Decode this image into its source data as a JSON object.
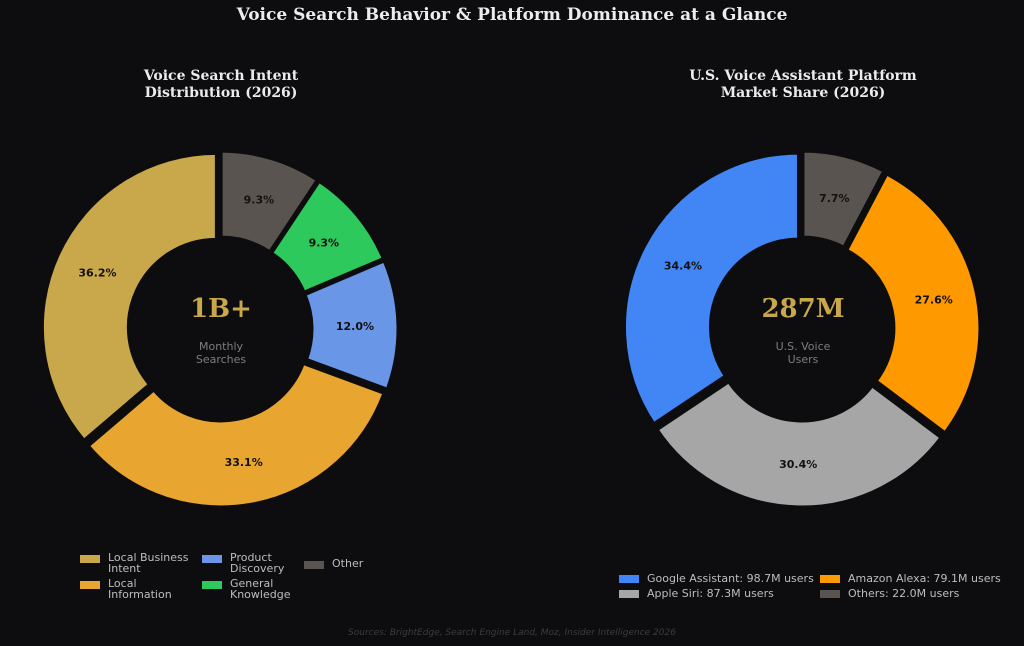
{
  "title": "Voice Search Behavior & Platform Dominance at a Glance",
  "source": "Sources: BrightEdge, Search Engine Land, Moz, Insider Intelligence 2026",
  "chart_data": [
    {
      "type": "pie",
      "title": "Voice Search Intent\nDistribution (2026)",
      "center": {
        "value": "1B+",
        "label": "Monthly\nSearches"
      },
      "series": [
        {
          "name": "Local Business\nIntent",
          "value": 36.2,
          "label": "36.2%",
          "color": "#c9a84c"
        },
        {
          "name": "Local\nInformation",
          "value": 33.1,
          "label": "33.1%",
          "color": "#e8a530"
        },
        {
          "name": "Product\nDiscovery",
          "value": 12.0,
          "label": "12.0%",
          "color": "#6a96e8"
        },
        {
          "name": "General\nKnowledge",
          "value": 9.3,
          "label": "9.3%",
          "color": "#2ec95c"
        },
        {
          "name": "Other",
          "value": 9.3,
          "label": "9.3%",
          "color": "#5a5450"
        }
      ]
    },
    {
      "type": "pie",
      "title": "U.S. Voice Assistant Platform\nMarket Share (2026)",
      "center": {
        "value": "287M",
        "label": "U.S. Voice\nUsers"
      },
      "series": [
        {
          "name": "Google Assistant: 98.7M users",
          "value": 34.4,
          "label": "34.4%",
          "color": "#4286f5"
        },
        {
          "name": "Apple Siri: 87.3M users",
          "value": 30.4,
          "label": "30.4%",
          "color": "#a6a6a6"
        },
        {
          "name": "Amazon Alexa: 79.1M users",
          "value": 27.6,
          "label": "27.6%",
          "color": "#ff9900"
        },
        {
          "name": "Others: 22.0M users",
          "value": 7.7,
          "label": "7.7%",
          "color": "#5a5450"
        }
      ]
    }
  ]
}
